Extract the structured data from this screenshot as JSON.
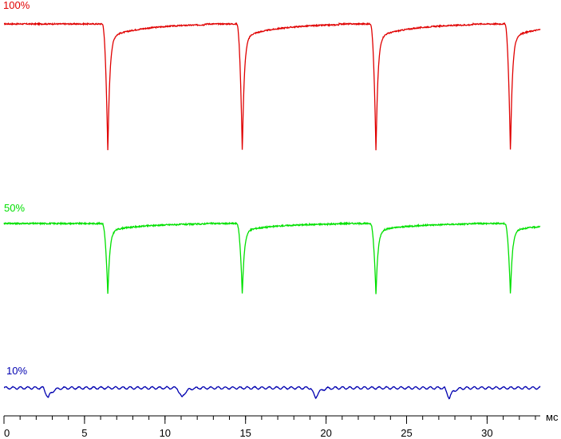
{
  "chart_data": {
    "type": "line",
    "title": "",
    "xlabel": "",
    "x_unit": "мс",
    "ylabel": "",
    "xlim": [
      0,
      33.3
    ],
    "x_ticks": [
      0,
      5,
      10,
      15,
      20,
      25,
      30
    ],
    "x_minor_step": 1,
    "grid": false,
    "legend": "none",
    "series": [
      {
        "name": "100%",
        "color": "#e00000",
        "baseline": 8,
        "min": -80,
        "dips_x": [
          6.45,
          14.8,
          23.1,
          31.45
        ]
      },
      {
        "name": "50%",
        "color": "#00e000",
        "baseline": 3,
        "min": -40,
        "dips_x": [
          6.45,
          14.8,
          23.1,
          31.45
        ]
      },
      {
        "name": "10%",
        "color": "#0000b0",
        "baseline": 2,
        "min": -6,
        "dips_x": [
          2.75,
          11.05,
          19.35,
          27.65
        ]
      }
    ]
  }
}
